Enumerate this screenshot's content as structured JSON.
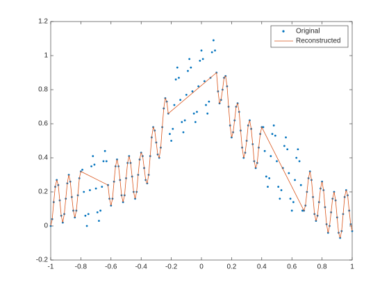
{
  "chart_data": {
    "type": "line",
    "x": [
      -1,
      -0.99,
      -0.98,
      -0.97,
      -0.96,
      -0.95,
      -0.94,
      -0.93,
      -0.92,
      -0.91,
      -0.9,
      -0.89,
      -0.88,
      -0.87,
      -0.86,
      -0.85,
      -0.84,
      -0.83,
      -0.82,
      -0.81,
      -0.8,
      -0.79,
      -0.78,
      -0.77,
      -0.76,
      -0.75,
      -0.74,
      -0.73,
      -0.72,
      -0.71,
      -0.7,
      -0.69,
      -0.68,
      -0.67,
      -0.66,
      -0.65,
      -0.64,
      -0.63,
      -0.62,
      -0.61,
      -0.6,
      -0.59,
      -0.58,
      -0.57,
      -0.56,
      -0.55,
      -0.54,
      -0.53,
      -0.52,
      -0.51,
      -0.5,
      -0.49,
      -0.48,
      -0.47,
      -0.46,
      -0.45,
      -0.44,
      -0.43,
      -0.42,
      -0.41,
      -0.4,
      -0.39,
      -0.38,
      -0.37,
      -0.36,
      -0.35,
      -0.34,
      -0.33,
      -0.32,
      -0.31,
      -0.3,
      -0.29,
      -0.28,
      -0.27,
      -0.26,
      -0.25,
      -0.24,
      -0.23,
      -0.22,
      -0.21,
      -0.2,
      -0.19,
      -0.18,
      -0.17,
      -0.16,
      -0.15,
      -0.14,
      -0.13,
      -0.12,
      -0.11,
      -0.1,
      -0.09,
      -0.08,
      -0.07,
      -0.06,
      -0.05,
      -0.04,
      -0.03,
      -0.02,
      -0.01,
      0,
      0.01,
      0.02,
      0.03,
      0.04,
      0.05,
      0.06,
      0.07,
      0.08,
      0.09,
      0.1,
      0.11,
      0.12,
      0.13,
      0.14,
      0.15,
      0.16,
      0.17,
      0.18,
      0.19,
      0.2,
      0.21,
      0.22,
      0.23,
      0.24,
      0.25,
      0.26,
      0.27,
      0.28,
      0.29,
      0.3,
      0.31,
      0.32,
      0.33,
      0.34,
      0.35,
      0.36,
      0.37,
      0.38,
      0.39,
      0.4,
      0.41,
      0.42,
      0.43,
      0.44,
      0.45,
      0.46,
      0.47,
      0.48,
      0.49,
      0.5,
      0.51,
      0.52,
      0.53,
      0.54,
      0.55,
      0.56,
      0.57,
      0.58,
      0.59,
      0.6,
      0.61,
      0.62,
      0.63,
      0.64,
      0.65,
      0.66,
      0.67,
      0.68,
      0.69,
      0.7,
      0.71,
      0.72,
      0.73,
      0.74,
      0.75,
      0.76,
      0.77,
      0.78,
      0.79,
      0.8,
      0.81,
      0.82,
      0.83,
      0.84,
      0.85,
      0.86,
      0.87,
      0.88,
      0.89,
      0.9,
      0.91,
      0.92,
      0.93,
      0.94,
      0.95,
      0.96,
      0.97,
      0.98,
      0.99,
      1
    ],
    "series": [
      {
        "name": "Original",
        "color": "#0072bd",
        "mode": "markers",
        "values": [
          0,
          0.04,
          0.14,
          0.23,
          0.27,
          0.24,
          0.15,
          0.06,
          0.02,
          0.07,
          0.16,
          0.25,
          0.3,
          0.26,
          0.17,
          0.09,
          0.05,
          0.09,
          0.18,
          0.28,
          0.32,
          0.33,
          0.2,
          0.06,
          0,
          0.07,
          0.21,
          0.35,
          0.41,
          0.36,
          0.22,
          0.08,
          0.03,
          0.09,
          0.23,
          0.38,
          0.44,
          0.38,
          0.24,
          0.16,
          0.12,
          0.16,
          0.26,
          0.35,
          0.39,
          0.35,
          0.27,
          0.18,
          0.14,
          0.18,
          0.28,
          0.37,
          0.41,
          0.37,
          0.29,
          0.2,
          0.16,
          0.2,
          0.3,
          0.39,
          0.43,
          0.41,
          0.34,
          0.27,
          0.25,
          0.3,
          0.41,
          0.52,
          0.58,
          0.56,
          0.49,
          0.42,
          0.4,
          0.46,
          0.58,
          0.69,
          0.75,
          0.73,
          0.66,
          0.54,
          0.5,
          0.57,
          0.71,
          0.86,
          0.93,
          0.87,
          0.74,
          0.61,
          0.55,
          0.62,
          0.77,
          0.91,
          0.98,
          0.93,
          0.79,
          0.66,
          0.61,
          0.67,
          0.82,
          0.97,
          1.03,
          0.98,
          0.85,
          0.71,
          0.66,
          0.73,
          0.87,
          1.02,
          1.09,
          1.03,
          0.9,
          0.79,
          0.72,
          0.74,
          0.8,
          0.87,
          0.88,
          0.82,
          0.7,
          0.59,
          0.52,
          0.55,
          0.62,
          0.7,
          0.72,
          0.67,
          0.56,
          0.46,
          0.4,
          0.43,
          0.5,
          0.59,
          0.62,
          0.57,
          0.48,
          0.38,
          0.34,
          0.37,
          0.46,
          0.54,
          0.58,
          0.58,
          0.44,
          0.29,
          0.23,
          0.28,
          0.41,
          0.54,
          0.59,
          0.53,
          0.38,
          0.23,
          0.16,
          0.21,
          0.34,
          0.47,
          0.52,
          0.45,
          0.31,
          0.16,
          0.09,
          0.14,
          0.27,
          0.4,
          0.45,
          0.38,
          0.24,
          0.09,
          0.09,
          0.12,
          0.2,
          0.28,
          0.32,
          0.27,
          0.17,
          0.07,
          0.03,
          0.06,
          0.14,
          0.22,
          0.26,
          0.21,
          0.11,
          0.01,
          -0.04,
          0,
          0.08,
          0.16,
          0.2,
          0.15,
          0.05,
          -0.04,
          -0.07,
          -0.03,
          0.07,
          0.17,
          0.21,
          0.18,
          0.09,
          0.01,
          -0.03
        ]
      },
      {
        "name": "Reconstructed",
        "color": "#d95319",
        "mode": "line",
        "x": [
          -1,
          -0.99,
          -0.98,
          -0.97,
          -0.96,
          -0.95,
          -0.94,
          -0.93,
          -0.92,
          -0.91,
          -0.9,
          -0.89,
          -0.88,
          -0.87,
          -0.86,
          -0.85,
          -0.84,
          -0.83,
          -0.82,
          -0.81,
          -0.8,
          -0.62,
          -0.61,
          -0.6,
          -0.59,
          -0.58,
          -0.57,
          -0.56,
          -0.55,
          -0.54,
          -0.53,
          -0.52,
          -0.51,
          -0.5,
          -0.49,
          -0.48,
          -0.47,
          -0.46,
          -0.45,
          -0.44,
          -0.43,
          -0.42,
          -0.41,
          -0.4,
          -0.39,
          -0.38,
          -0.37,
          -0.36,
          -0.35,
          -0.34,
          -0.33,
          -0.32,
          -0.31,
          -0.3,
          -0.29,
          -0.28,
          -0.27,
          -0.26,
          -0.25,
          -0.24,
          -0.23,
          -0.22,
          0.1,
          0.11,
          0.12,
          0.13,
          0.14,
          0.15,
          0.16,
          0.17,
          0.18,
          0.19,
          0.2,
          0.21,
          0.22,
          0.23,
          0.24,
          0.25,
          0.26,
          0.27,
          0.28,
          0.29,
          0.3,
          0.31,
          0.32,
          0.33,
          0.34,
          0.35,
          0.36,
          0.37,
          0.38,
          0.39,
          0.4,
          0.68,
          0.69,
          0.7,
          0.71,
          0.72,
          0.73,
          0.74,
          0.75,
          0.76,
          0.77,
          0.78,
          0.79,
          0.8,
          0.81,
          0.82,
          0.83,
          0.84,
          0.85,
          0.86,
          0.87,
          0.88,
          0.89,
          0.9,
          0.91,
          0.92,
          0.93,
          0.94,
          0.95,
          0.96,
          0.97,
          0.98,
          0.99,
          1
        ],
        "values": [
          0,
          0.04,
          0.14,
          0.23,
          0.27,
          0.24,
          0.15,
          0.06,
          0.02,
          0.07,
          0.16,
          0.25,
          0.3,
          0.26,
          0.17,
          0.09,
          0.05,
          0.09,
          0.18,
          0.28,
          0.32,
          0.24,
          0.16,
          0.12,
          0.16,
          0.26,
          0.35,
          0.39,
          0.35,
          0.27,
          0.18,
          0.14,
          0.18,
          0.28,
          0.37,
          0.41,
          0.37,
          0.29,
          0.2,
          0.16,
          0.2,
          0.3,
          0.39,
          0.43,
          0.41,
          0.34,
          0.27,
          0.25,
          0.3,
          0.41,
          0.52,
          0.58,
          0.56,
          0.49,
          0.42,
          0.4,
          0.46,
          0.58,
          0.69,
          0.75,
          0.73,
          0.66,
          0.9,
          0.79,
          0.72,
          0.74,
          0.8,
          0.87,
          0.88,
          0.82,
          0.7,
          0.59,
          0.52,
          0.55,
          0.62,
          0.7,
          0.72,
          0.67,
          0.56,
          0.46,
          0.4,
          0.43,
          0.5,
          0.59,
          0.62,
          0.57,
          0.48,
          0.38,
          0.34,
          0.37,
          0.46,
          0.54,
          0.58,
          0.09,
          0.12,
          0.2,
          0.28,
          0.32,
          0.27,
          0.17,
          0.07,
          0.03,
          0.06,
          0.14,
          0.22,
          0.26,
          0.21,
          0.11,
          0.01,
          -0.04,
          0,
          0.08,
          0.16,
          0.2,
          0.15,
          0.05,
          -0.04,
          -0.07,
          -0.03,
          0.07,
          0.17,
          0.21,
          0.18,
          0.09,
          0.01,
          -0.03
        ]
      }
    ],
    "xlim": [
      -1,
      1
    ],
    "xticks": [
      -1,
      -0.8,
      -0.6,
      -0.4,
      -0.2,
      0,
      0.2,
      0.4,
      0.6,
      0.8,
      1
    ],
    "ylim": [
      -0.2,
      1.2
    ],
    "yticks": [
      -0.2,
      0,
      0.2,
      0.4,
      0.6,
      0.8,
      1,
      1.2
    ],
    "grid": false,
    "legend": "northeast"
  }
}
